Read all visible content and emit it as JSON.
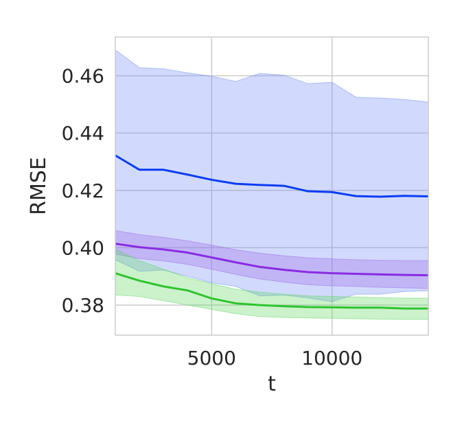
{
  "chart_data": {
    "type": "line",
    "xlabel": "t",
    "ylabel": "RMSE",
    "xlim": [
      1000,
      14000
    ],
    "ylim": [
      0.3695,
      0.4735
    ],
    "grid": true,
    "xticks": [
      5000,
      10000
    ],
    "xtick_labels": [
      "5000",
      "10000"
    ],
    "yticks": [
      0.38,
      0.4,
      0.42,
      0.44,
      0.46
    ],
    "ytick_labels": [
      "0.38",
      "0.40",
      "0.42",
      "0.44",
      "0.46"
    ],
    "x": [
      1000,
      2000,
      3000,
      4000,
      5000,
      6000,
      7000,
      8000,
      9000,
      10000,
      11000,
      12000,
      13000,
      14000
    ],
    "series": [
      {
        "color": "#0a3cf5",
        "band_color": "#6f8cf7",
        "values": [
          0.4322,
          0.4272,
          0.4272,
          0.4255,
          0.4237,
          0.4223,
          0.4219,
          0.4216,
          0.4197,
          0.4194,
          0.418,
          0.4178,
          0.4181,
          0.4179
        ],
        "upper": [
          0.469,
          0.4628,
          0.4624,
          0.461,
          0.4598,
          0.458,
          0.4608,
          0.4602,
          0.4572,
          0.4577,
          0.4525,
          0.4522,
          0.4517,
          0.4508
        ],
        "lower": [
          0.3958,
          0.3918,
          0.3922,
          0.39,
          0.3878,
          0.3865,
          0.3832,
          0.3835,
          0.3825,
          0.3812,
          0.3838,
          0.3838,
          0.3847,
          0.385
        ]
      },
      {
        "color": "#8a2be2",
        "band_color": "#a066e8",
        "values": [
          0.4014,
          0.4002,
          0.3994,
          0.3983,
          0.3966,
          0.3949,
          0.3933,
          0.3923,
          0.3915,
          0.3911,
          0.3909,
          0.3907,
          0.3905,
          0.3904
        ],
        "upper": [
          0.406,
          0.4046,
          0.4036,
          0.4024,
          0.4009,
          0.3993,
          0.3981,
          0.3972,
          0.3965,
          0.3961,
          0.3958,
          0.3956,
          0.3955,
          0.3955
        ],
        "lower": [
          0.3978,
          0.3962,
          0.3954,
          0.3942,
          0.3925,
          0.3907,
          0.3891,
          0.388,
          0.3871,
          0.3867,
          0.3865,
          0.3862,
          0.386,
          0.3858
        ]
      },
      {
        "color": "#2ec42e",
        "band_color": "#5cd65c",
        "values": [
          0.3911,
          0.3885,
          0.3865,
          0.3851,
          0.3823,
          0.3806,
          0.38,
          0.3796,
          0.3793,
          0.3792,
          0.3791,
          0.3791,
          0.3788,
          0.3788
        ],
        "upper": [
          0.3995,
          0.3955,
          0.3925,
          0.3895,
          0.3875,
          0.3855,
          0.3845,
          0.3838,
          0.3832,
          0.383,
          0.3828,
          0.3826,
          0.3824,
          0.3824
        ],
        "lower": [
          0.3835,
          0.383,
          0.3815,
          0.38,
          0.3785,
          0.377,
          0.376,
          0.3757,
          0.3755,
          0.3754,
          0.3752,
          0.3751,
          0.375,
          0.375
        ]
      }
    ]
  }
}
